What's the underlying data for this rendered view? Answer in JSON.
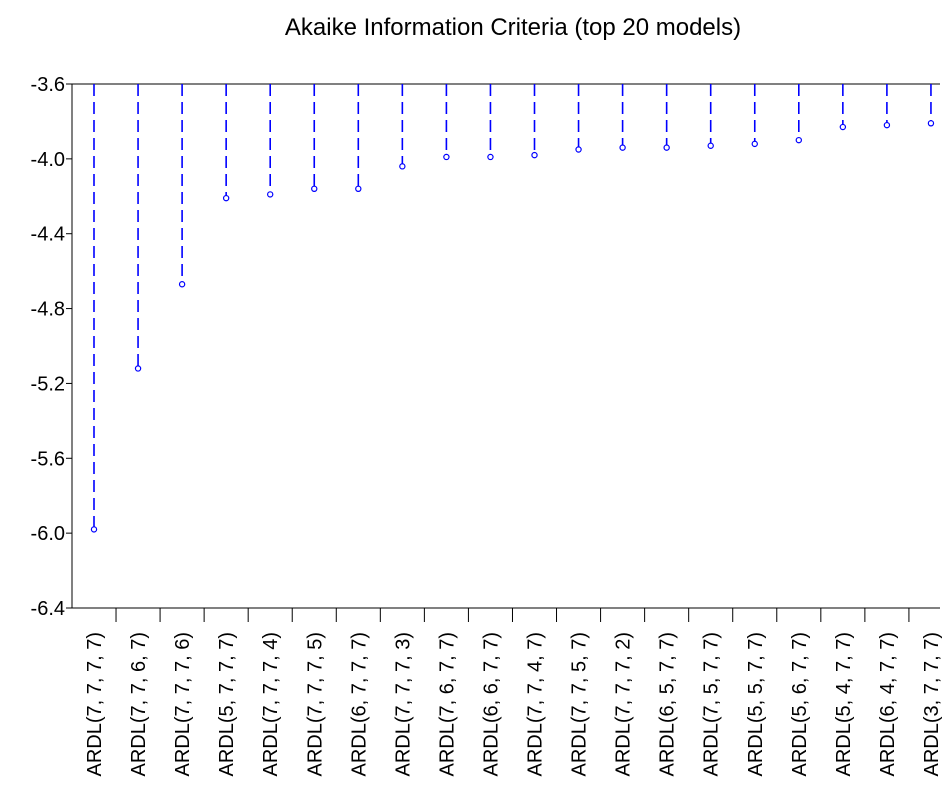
{
  "chart_data": {
    "type": "scatter",
    "title": "Akaike Information Criteria (top 20 models)",
    "xlabel": "",
    "ylabel": "",
    "ylim": [
      -6.4,
      -3.6
    ],
    "yticks": [
      "-3.6",
      "-4.0",
      "-4.4",
      "-4.8",
      "-5.2",
      "-5.6",
      "-6.0",
      "-6.4"
    ],
    "categories": [
      "ARDL(7, 7, 7, 7)",
      "ARDL(7, 7, 6, 7)",
      "ARDL(7, 7, 7, 6)",
      "ARDL(5, 7, 7, 7)",
      "ARDL(7, 7, 7, 4)",
      "ARDL(7, 7, 7, 5)",
      "ARDL(6, 7, 7, 7)",
      "ARDL(7, 7, 7, 3)",
      "ARDL(7, 6, 7, 7)",
      "ARDL(6, 6, 7, 7)",
      "ARDL(7, 7, 4, 7)",
      "ARDL(7, 7, 5, 7)",
      "ARDL(7, 7, 7, 2)",
      "ARDL(6, 5, 7, 7)",
      "ARDL(7, 5, 7, 7)",
      "ARDL(5, 5, 7, 7)",
      "ARDL(5, 6, 7, 7)",
      "ARDL(5, 4, 7, 7)",
      "ARDL(6, 4, 7, 7)",
      "ARDL(3, 7, 7, 7)"
    ],
    "values": [
      -5.98,
      -5.12,
      -4.67,
      -4.21,
      -4.19,
      -4.16,
      -4.16,
      -4.04,
      -3.99,
      -3.99,
      -3.98,
      -3.95,
      -3.94,
      -3.94,
      -3.93,
      -3.92,
      -3.9,
      -3.83,
      -3.82,
      -3.81
    ],
    "grid": false,
    "marker": "hollow circle with dashed drop line",
    "colors": {
      "series": "#0000ff",
      "axis": "#000000"
    }
  }
}
